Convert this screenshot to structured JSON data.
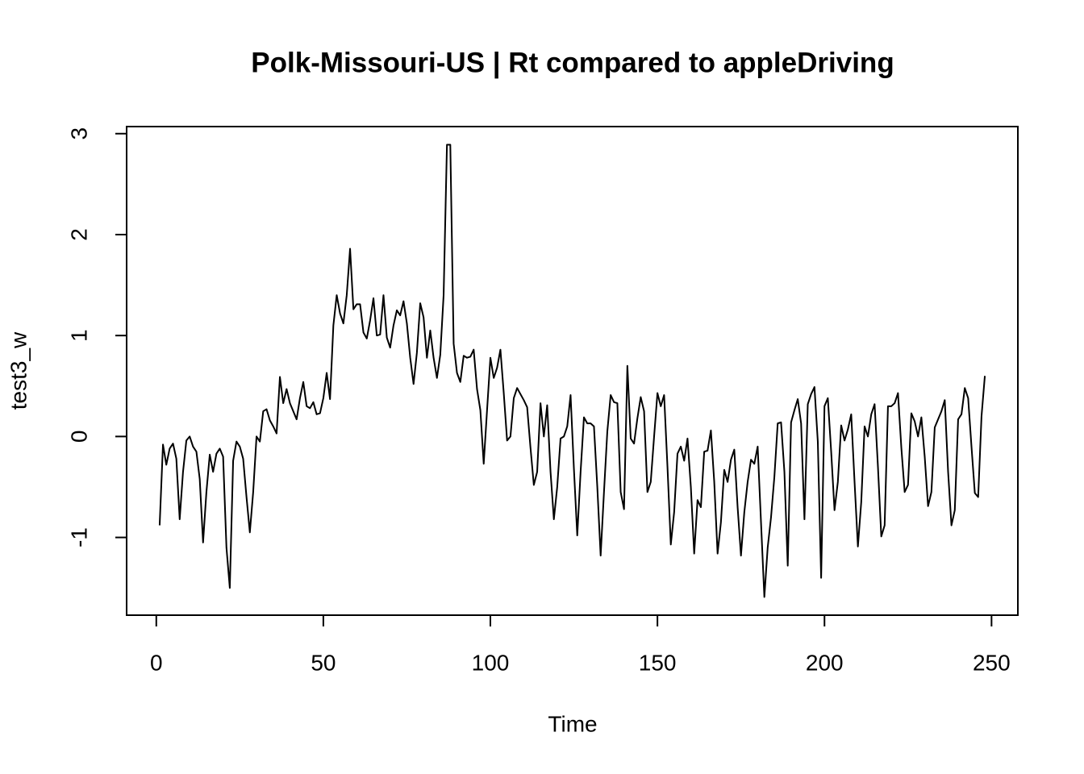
{
  "chart_data": {
    "type": "line",
    "title": "Polk-Missouri-US | Rt compared to appleDriving",
    "xlabel": "Time",
    "ylabel": "test3_w",
    "x": [
      1,
      2,
      3,
      4,
      5,
      6,
      7,
      8,
      9,
      10,
      11,
      12,
      13,
      14,
      15,
      16,
      17,
      18,
      19,
      20,
      21,
      22,
      23,
      24,
      25,
      26,
      27,
      28,
      29,
      30,
      31,
      32,
      33,
      34,
      35,
      36,
      37,
      38,
      39,
      40,
      41,
      42,
      43,
      44,
      45,
      46,
      47,
      48,
      49,
      50,
      51,
      52,
      53,
      54,
      55,
      56,
      57,
      58,
      59,
      60,
      61,
      62,
      63,
      64,
      65,
      66,
      67,
      68,
      69,
      70,
      71,
      72,
      73,
      74,
      75,
      76,
      77,
      78,
      79,
      80,
      81,
      82,
      83,
      84,
      85,
      86,
      87,
      88,
      89,
      90,
      91,
      92,
      93,
      94,
      95,
      96,
      97,
      98,
      99,
      100,
      101,
      102,
      103,
      104,
      105,
      106,
      107,
      108,
      109,
      110,
      111,
      112,
      113,
      114,
      115,
      116,
      117,
      118,
      119,
      120,
      121,
      122,
      123,
      124,
      125,
      126,
      127,
      128,
      129,
      130,
      131,
      132,
      133,
      134,
      135,
      136,
      137,
      138,
      139,
      140,
      141,
      142,
      143,
      144,
      145,
      146,
      147,
      148,
      149,
      150,
      151,
      152,
      153,
      154,
      155,
      156,
      157,
      158,
      159,
      160,
      161,
      162,
      163,
      164,
      165,
      166,
      167,
      168,
      169,
      170,
      171,
      172,
      173,
      174,
      175,
      176,
      177,
      178,
      179,
      180,
      181,
      182,
      183,
      184,
      185,
      186,
      187,
      188,
      189,
      190,
      191,
      192,
      193,
      194,
      195,
      196,
      197,
      198,
      199,
      200,
      201,
      202,
      203,
      204,
      205,
      206,
      207,
      208,
      209,
      210,
      211,
      212,
      213,
      214,
      215,
      216,
      217,
      218,
      219,
      220,
      221,
      222,
      223,
      224,
      225,
      226,
      227,
      228,
      229,
      230,
      231,
      232,
      233,
      234,
      235,
      236,
      237,
      238,
      239,
      240,
      241,
      242,
      243,
      244,
      245,
      246,
      247,
      248
    ],
    "values": [
      -0.88,
      -0.08,
      -0.28,
      -0.12,
      -0.07,
      -0.22,
      -0.82,
      -0.35,
      -0.04,
      0.0,
      -0.1,
      -0.15,
      -0.42,
      -1.05,
      -0.55,
      -0.18,
      -0.35,
      -0.17,
      -0.12,
      -0.2,
      -1.1,
      -1.5,
      -0.24,
      -0.05,
      -0.1,
      -0.22,
      -0.6,
      -0.95,
      -0.55,
      0.0,
      -0.05,
      0.25,
      0.27,
      0.16,
      0.1,
      0.03,
      0.59,
      0.33,
      0.47,
      0.33,
      0.25,
      0.17,
      0.38,
      0.54,
      0.3,
      0.28,
      0.34,
      0.22,
      0.23,
      0.38,
      0.63,
      0.37,
      1.1,
      1.4,
      1.22,
      1.12,
      1.4,
      1.86,
      1.26,
      1.31,
      1.31,
      1.03,
      0.97,
      1.15,
      1.37,
      1.0,
      1.01,
      1.4,
      0.98,
      0.88,
      1.1,
      1.25,
      1.2,
      1.34,
      1.12,
      0.78,
      0.52,
      0.83,
      1.32,
      1.18,
      0.78,
      1.05,
      0.78,
      0.58,
      0.81,
      1.4,
      2.89,
      2.89,
      0.92,
      0.63,
      0.54,
      0.8,
      0.78,
      0.79,
      0.86,
      0.47,
      0.26,
      -0.27,
      0.26,
      0.78,
      0.58,
      0.68,
      0.86,
      0.43,
      -0.04,
      0.0,
      0.38,
      0.48,
      0.42,
      0.36,
      0.29,
      -0.11,
      -0.48,
      -0.35,
      0.33,
      0.0,
      0.31,
      -0.35,
      -0.82,
      -0.5,
      -0.02,
      0.0,
      0.1,
      0.41,
      -0.32,
      -0.98,
      -0.35,
      0.19,
      0.13,
      0.13,
      0.1,
      -0.5,
      -1.18,
      -0.55,
      0.05,
      0.41,
      0.34,
      0.33,
      -0.55,
      -0.72,
      0.7,
      -0.02,
      -0.07,
      0.18,
      0.39,
      0.25,
      -0.55,
      -0.45,
      0.0,
      0.43,
      0.3,
      0.41,
      -0.3,
      -1.07,
      -0.75,
      -0.17,
      -0.1,
      -0.24,
      -0.02,
      -0.5,
      -1.16,
      -0.63,
      -0.7,
      -0.15,
      -0.14,
      0.06,
      -0.45,
      -1.16,
      -0.85,
      -0.33,
      -0.45,
      -0.23,
      -0.13,
      -0.7,
      -1.18,
      -0.75,
      -0.45,
      -0.23,
      -0.27,
      -0.1,
      -0.85,
      -1.59,
      -1.1,
      -0.8,
      -0.4,
      0.13,
      0.14,
      -0.35,
      -1.28,
      0.14,
      0.26,
      0.37,
      0.13,
      -0.82,
      0.32,
      0.42,
      0.49,
      -0.05,
      -1.4,
      0.3,
      0.38,
      -0.15,
      -0.73,
      -0.45,
      0.11,
      -0.04,
      0.07,
      0.22,
      -0.45,
      -1.09,
      -0.65,
      0.1,
      0.0,
      0.22,
      0.32,
      -0.3,
      -0.99,
      -0.88,
      0.3,
      0.3,
      0.33,
      0.43,
      -0.11,
      -0.55,
      -0.48,
      0.23,
      0.15,
      0.0,
      0.19,
      -0.2,
      -0.69,
      -0.55,
      0.09,
      0.17,
      0.25,
      0.36,
      -0.35,
      -0.88,
      -0.73,
      0.17,
      0.22,
      0.48,
      0.38,
      -0.1,
      -0.56,
      -0.6,
      0.2,
      0.6
    ],
    "color": "#000000",
    "xlim": [
      -8.88,
      257.88
    ],
    "xticks": [
      0,
      50,
      100,
      150,
      200,
      250
    ],
    "ylim": [
      -1.77,
      3.07
    ],
    "yticks": [
      -1,
      0,
      1,
      2,
      3
    ]
  }
}
